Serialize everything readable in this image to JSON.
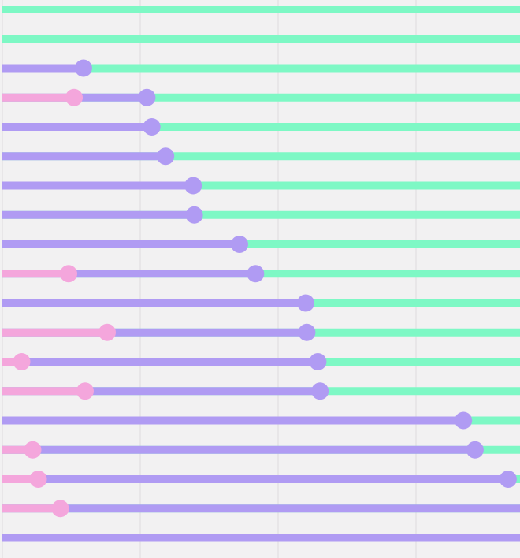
{
  "chart_data": {
    "type": "bar",
    "orientation": "horizontal",
    "style": "stacked range bars with circular end markers",
    "grid": true,
    "xlim": [
      0,
      1
    ],
    "colors": {
      "background": "#f2f1f2",
      "grid": "#e4e3e4",
      "pink": "#f4a6dc",
      "purple": "#b09bf3",
      "green": "#7ef8c5"
    },
    "series": [
      {
        "color": "pink",
        "values": [
          0,
          0,
          0,
          0.13,
          0,
          0,
          0,
          0,
          0,
          0.12,
          0,
          0.19,
          0.035,
          0.15,
          0,
          0.055,
          0.065,
          0.105,
          0
        ]
      },
      {
        "color": "purple",
        "values": [
          0,
          0,
          0.147,
          0.262,
          0.271,
          0.296,
          0.346,
          0.348,
          0.43,
          0.459,
          0.55,
          0.552,
          0.572,
          0.576,
          0.836,
          0.857,
          0.917,
          1.0,
          1.0
        ]
      },
      {
        "color": "green",
        "values": [
          1,
          1,
          1,
          1,
          1,
          1,
          1,
          1,
          1,
          1,
          1,
          1,
          1,
          1,
          1,
          1,
          1,
          1,
          1
        ]
      }
    ]
  }
}
